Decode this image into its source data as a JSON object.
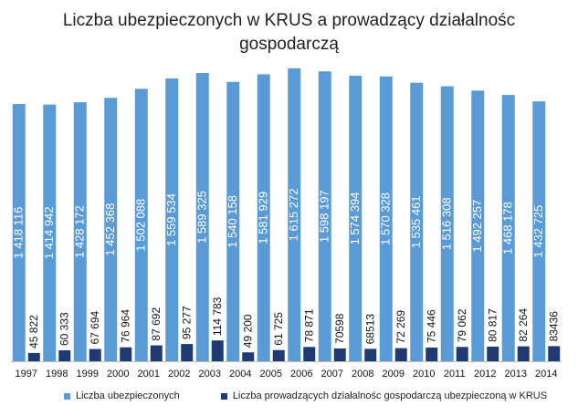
{
  "title_line1": "Liczba ubezpieczonych w KRUS a prowadzący działalnośc",
  "title_line2": "gospodarczą",
  "colors": {
    "series1": "#5b9bd5",
    "series2": "#1f3a73",
    "axis": "#bfbfbf"
  },
  "chart_data": {
    "type": "bar",
    "title": "Liczba ubezpieczonych w KRUS a prowadzący działalnośc gospodarczą",
    "categories": [
      "1997",
      "1998",
      "1999",
      "2000",
      "2001",
      "2002",
      "2003",
      "2004",
      "2005",
      "2006",
      "2007",
      "2008",
      "2009",
      "2010",
      "2011",
      "2012",
      "2013",
      "2014"
    ],
    "series": [
      {
        "name": "Liczba ubezpieczonych",
        "values": [
          1418116,
          1414942,
          1428172,
          1452368,
          1502088,
          1559534,
          1589325,
          1540158,
          1581929,
          1615272,
          1598197,
          1574394,
          1570328,
          1535461,
          1516308,
          1492257,
          1468178,
          1432725
        ],
        "labels": [
          "1 418 116",
          "1 414 942",
          "1 428 172",
          "1 452 368",
          "1 502 088",
          "1 559 534",
          "1 589 325",
          "1 540 158",
          "1 581 929",
          "1 615 272",
          "1 598 197",
          "1 574 394",
          "1 570 328",
          "1 535 461",
          "1 516 308",
          "1 492 257",
          "1 468 178",
          "1 432 725"
        ]
      },
      {
        "name": "Liczba prowadzących działalnośc gospodarczą ubezpieczoną w KRUS",
        "values": [
          45822,
          60333,
          67694,
          76964,
          87692,
          95277,
          114783,
          49200,
          61725,
          78871,
          70598,
          68513,
          72269,
          75446,
          79062,
          80817,
          82264,
          83436
        ],
        "labels": [
          "45 822",
          "60 333",
          "67 694",
          "76 964",
          "87 692",
          "95 277",
          "114 783",
          "49 200",
          "61 725",
          "78 871",
          "70598",
          "68513",
          "72 269",
          "75 446",
          "79 062",
          "80 817",
          "82 264",
          "83436"
        ]
      }
    ],
    "ylim": [
      0,
      1700000
    ],
    "legend_position": "bottom",
    "grid": false
  }
}
